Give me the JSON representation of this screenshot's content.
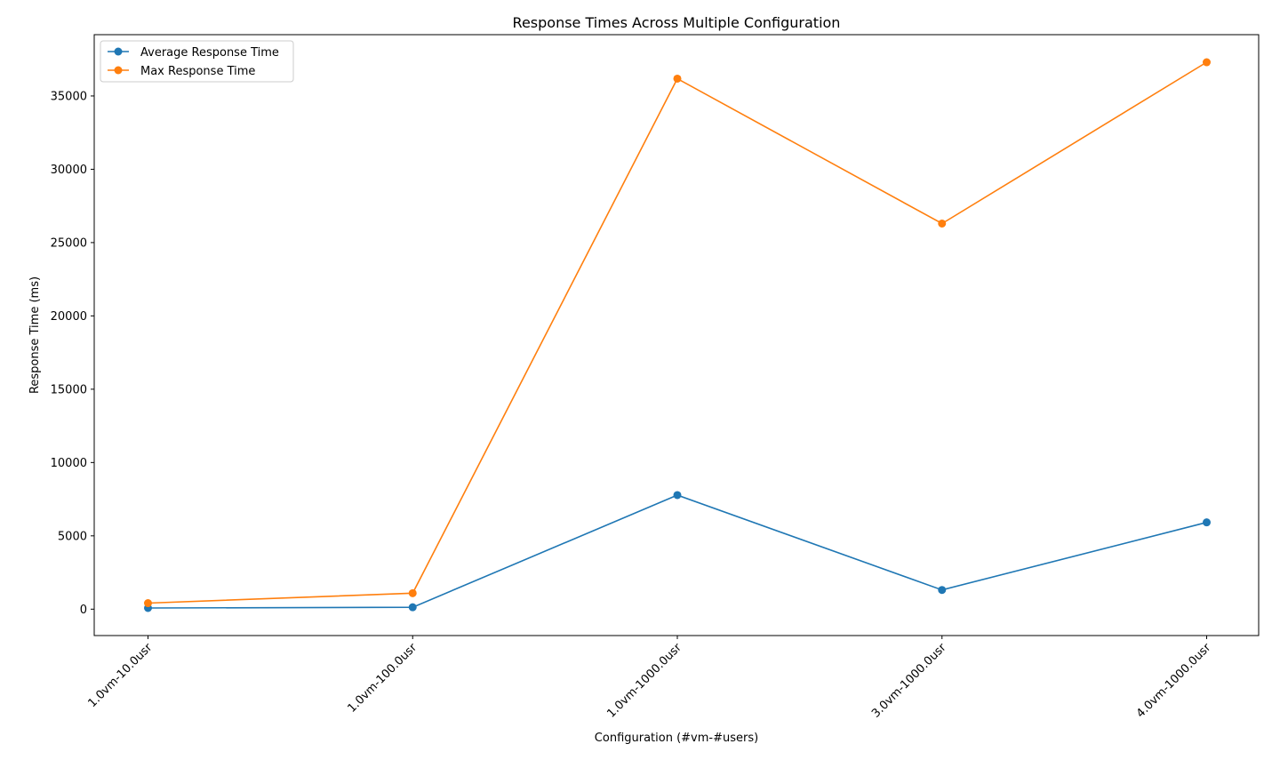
{
  "chart_data": {
    "type": "line",
    "title": "Response Times Across Multiple Configuration",
    "xlabel": "Configuration (#vm-#users)",
    "ylabel": "Response Time (ms)",
    "categories": [
      "1.0vm-10.0usr",
      "1.0vm-100.0usr",
      "1.0vm-1000.0usr",
      "3.0vm-1000.0usr",
      "4.0vm-1000.0usr"
    ],
    "series": [
      {
        "name": "Average Response Time",
        "color": "#1f77b4",
        "values": [
          80,
          130,
          7780,
          1310,
          5920
        ]
      },
      {
        "name": "Max Response Time",
        "color": "#ff7f0e",
        "values": [
          410,
          1090,
          36180,
          26300,
          37300
        ]
      }
    ],
    "yticks": [
      0,
      5000,
      10000,
      15000,
      20000,
      25000,
      30000,
      35000
    ],
    "ylim": [
      -1800,
      39180
    ],
    "grid": false,
    "legend_position": "top-left",
    "marker": "circle"
  }
}
